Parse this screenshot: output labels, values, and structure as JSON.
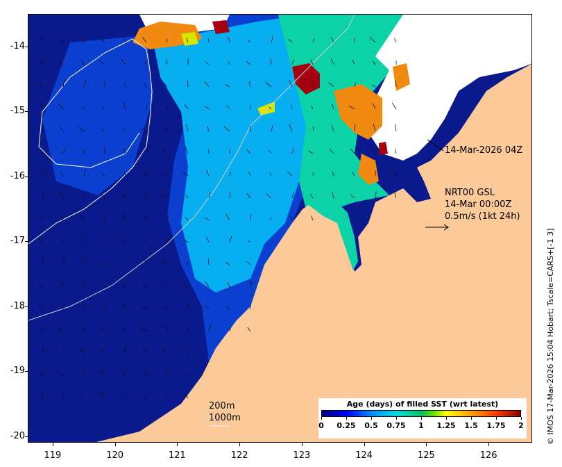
{
  "map": {
    "y_axis": {
      "ticks": [
        "-14",
        "-15",
        "-16",
        "-17",
        "-18",
        "-19",
        "-20"
      ],
      "values": [
        -14,
        -15,
        -16,
        -17,
        -18,
        -19,
        -20
      ]
    },
    "x_axis": {
      "ticks": [
        "119",
        "120",
        "121",
        "122",
        "123",
        "124",
        "125",
        "126"
      ],
      "values": [
        119,
        120,
        121,
        122,
        123,
        124,
        125,
        126
      ]
    },
    "lon_range": [
      118.6,
      126.7
    ],
    "lat_range": [
      -13.5,
      -20.1
    ],
    "annotations": {
      "timestamp": "14-Mar-2026 04Z",
      "model_line1": "NRT00 GSL",
      "model_line2": "14-Mar 00:00Z",
      "scale_line3": "0.5m/s (1kt 24h)",
      "contour_200": "200m",
      "contour_1000": "1000m"
    },
    "credit": "© IMOS 17-Mar-2026 15:04 Hobart; Tscale=CARS+[-1 3]",
    "colorbar": {
      "title": "Age (days) of filled SST (wrt latest)",
      "labels": [
        "0",
        "0.25",
        "0.5",
        "0.75",
        "1",
        "1.25",
        "1.5",
        "1.75",
        "2"
      ],
      "range": [
        0,
        2
      ]
    },
    "colors": {
      "land": "#fcca98",
      "no_data": "#ffffff",
      "age_0": "#0a1a8c",
      "age_0_25": "#0a3fd0",
      "age_0_5": "#07aef0",
      "age_0_75": "#0cd2a8",
      "age_1_25": "#d8e600",
      "age_1_5": "#f08a10",
      "age_2": "#a50010"
    }
  }
}
